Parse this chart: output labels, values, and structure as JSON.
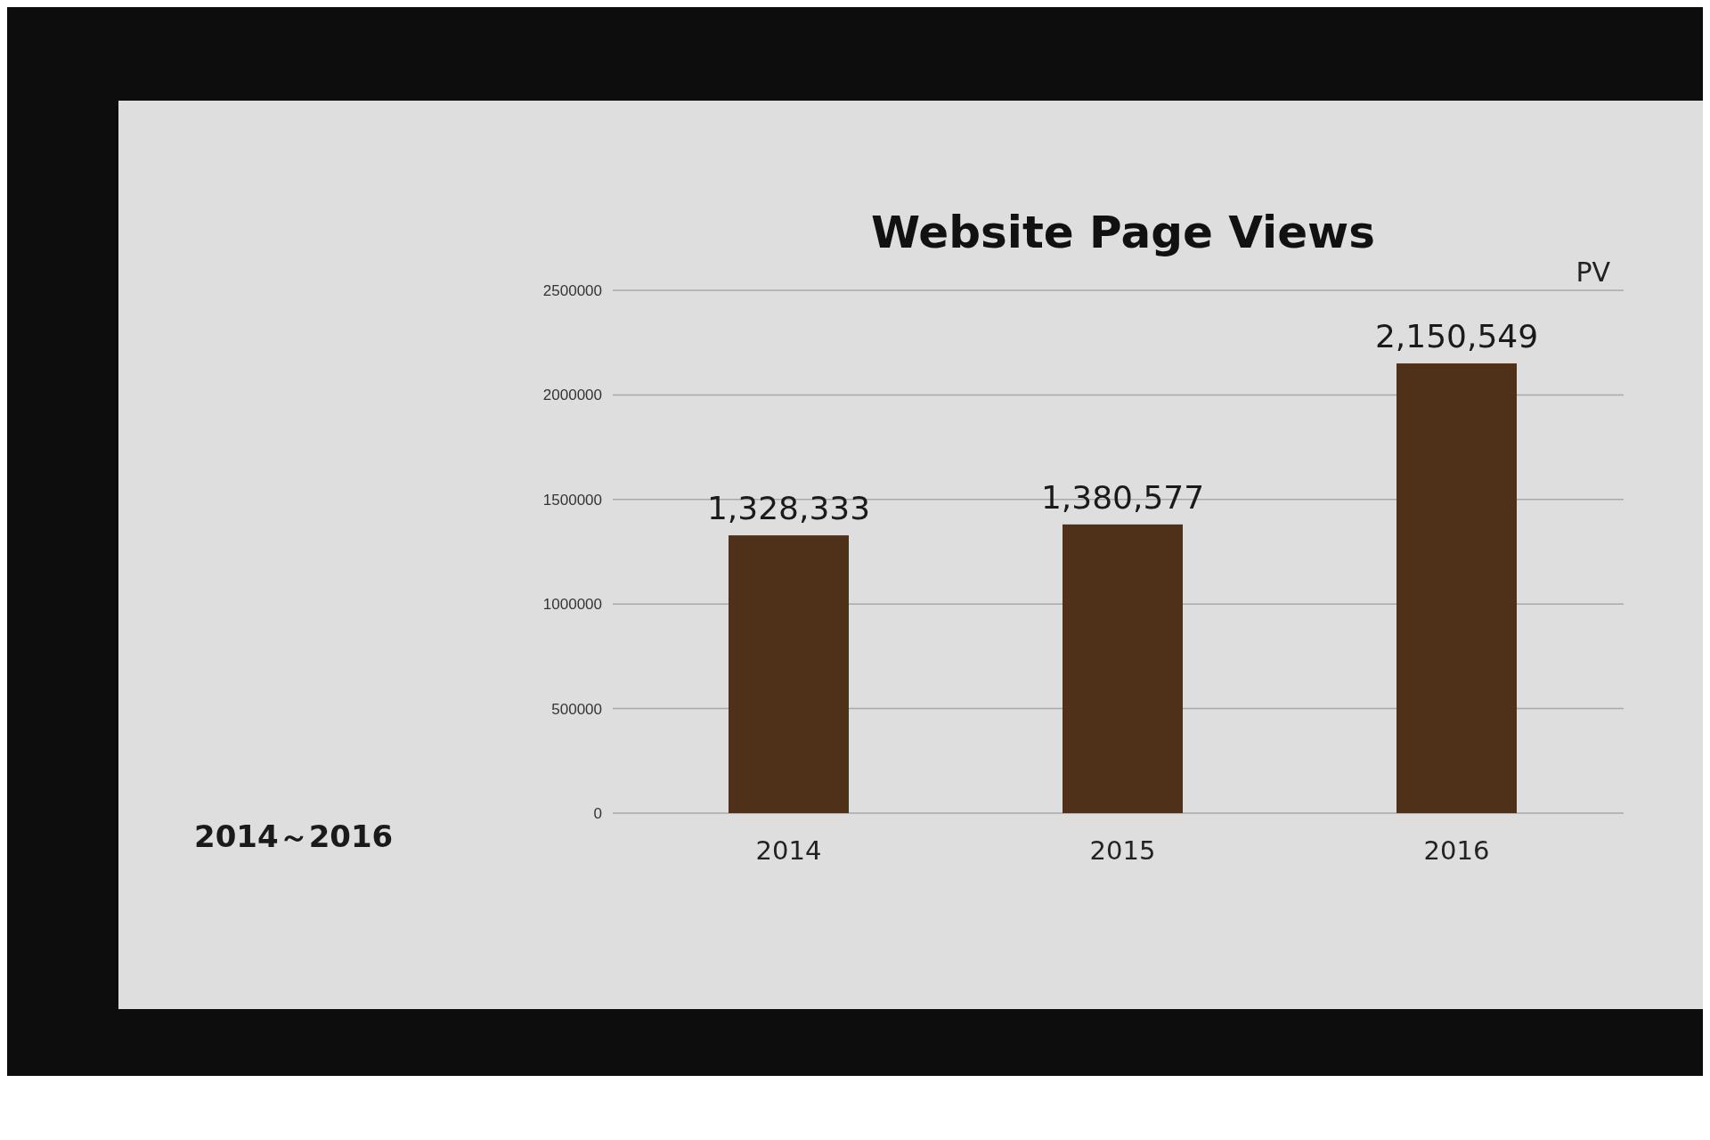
{
  "chart_data": {
    "type": "bar",
    "title": "Website Page Views",
    "ylabel": "PV",
    "categories": [
      "2014",
      "2015",
      "2016"
    ],
    "values": [
      1328333,
      1380577,
      2150549
    ],
    "color": "#4e3118",
    "value_labels": [
      "1,328,333",
      "1,380,577",
      "2,150,549"
    ],
    "ylim": [
      0,
      2500000
    ],
    "yticks": [
      0,
      500000,
      1000000,
      1500000,
      2000000,
      2500000
    ],
    "grid": "y",
    "annotations": [
      "2014～2016"
    ]
  }
}
